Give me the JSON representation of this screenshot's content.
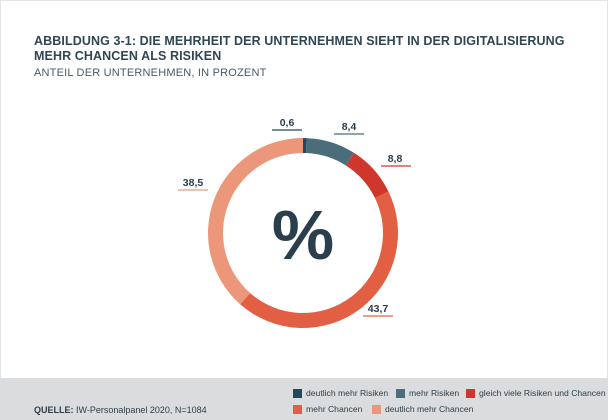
{
  "header": {
    "title": "ABBILDUNG 3-1: DIE MEHRHEIT DER UNTERNEHMEN SIEHT IN DER DIGITALISIERUNG MEHR CHANCEN ALS RISIKEN",
    "subtitle": "ANTEIL DER UNTERNEHMEN, IN PROZENT"
  },
  "chart_data": {
    "type": "pie",
    "center_label": "%",
    "categories": [
      "deutlich mehr Risiken",
      "mehr Risiken",
      "gleich viele Risiken und Chancen",
      "mehr Chancen",
      "deutlich mehr Chancen"
    ],
    "values": [
      0.6,
      8.4,
      8.8,
      43.7,
      38.5
    ],
    "labels": [
      "0,6",
      "8,4",
      "8,8",
      "43,7",
      "38,5"
    ],
    "colors": [
      "#23475b",
      "#4b6c7a",
      "#d0372c",
      "#e35f43",
      "#ec977a"
    ],
    "legend_position": "bottom-right"
  },
  "footer": {
    "source_label": "QUELLE:",
    "source_text": "IW-Personalpanel 2020, N=1084"
  }
}
